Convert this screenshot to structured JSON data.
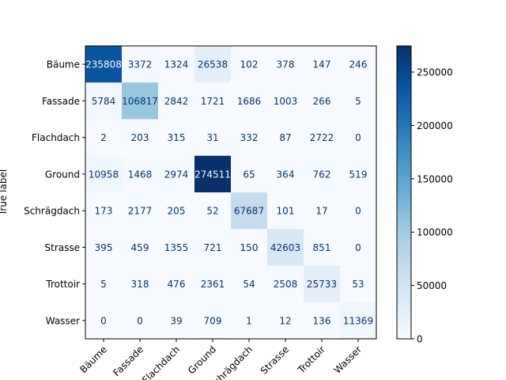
{
  "chart_data": {
    "type": "heatmap",
    "ylabel": "True label",
    "xlabel": "",
    "x_categories": [
      "Bäume",
      "Fassade",
      "Flachdach",
      "Ground",
      "Schrägdach",
      "Strasse",
      "Trottoir",
      "Wasser"
    ],
    "y_categories": [
      "Bäume",
      "Fassade",
      "Flachdach",
      "Ground",
      "Schrägdach",
      "Strasse",
      "Trottoir",
      "Wasser"
    ],
    "matrix": [
      [
        235808,
        3372,
        1324,
        26538,
        102,
        378,
        147,
        246
      ],
      [
        5784,
        106817,
        2842,
        1721,
        1686,
        1003,
        266,
        5
      ],
      [
        2,
        203,
        315,
        31,
        332,
        87,
        2722,
        0
      ],
      [
        10958,
        1468,
        2974,
        274511,
        65,
        364,
        762,
        519
      ],
      [
        173,
        2177,
        205,
        52,
        67687,
        101,
        17,
        0
      ],
      [
        395,
        459,
        1355,
        721,
        150,
        42603,
        851,
        0
      ],
      [
        5,
        318,
        476,
        2361,
        54,
        2508,
        25733,
        53
      ],
      [
        0,
        0,
        39,
        709,
        1,
        12,
        136,
        11369
      ]
    ],
    "colorbar": {
      "min": 0,
      "max": 274511,
      "ticks": [
        "0",
        "50000",
        "100000",
        "150000",
        "200000",
        "250000"
      ],
      "colormap": "Blues"
    },
    "colors": {
      "low": "#f7fbff",
      "high": "#08306b",
      "text_dark": "#08306b",
      "text_light": "#f7fbff"
    }
  }
}
